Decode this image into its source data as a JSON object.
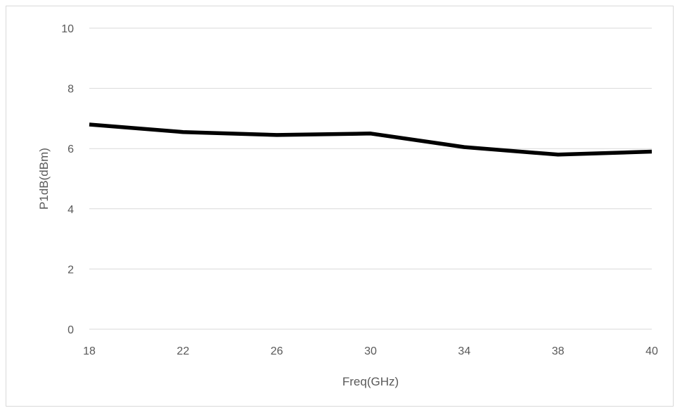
{
  "chart_data": {
    "type": "line",
    "title": "",
    "xlabel": "Freq(GHz)",
    "ylabel": "P1dB(dBm)",
    "x": [
      "18",
      "22",
      "26",
      "30",
      "34",
      "38",
      "40"
    ],
    "y_ticks": [
      "0",
      "2",
      "4",
      "6",
      "8",
      "10"
    ],
    "ylim": [
      0,
      10
    ],
    "grid": true,
    "legend": "none",
    "series": [
      {
        "values": [
          6.8,
          6.55,
          6.45,
          6.5,
          6.05,
          5.8,
          5.9
        ],
        "color": "#000000"
      }
    ],
    "gridline_color": "#d9d9d9",
    "text_color": "#595959"
  }
}
